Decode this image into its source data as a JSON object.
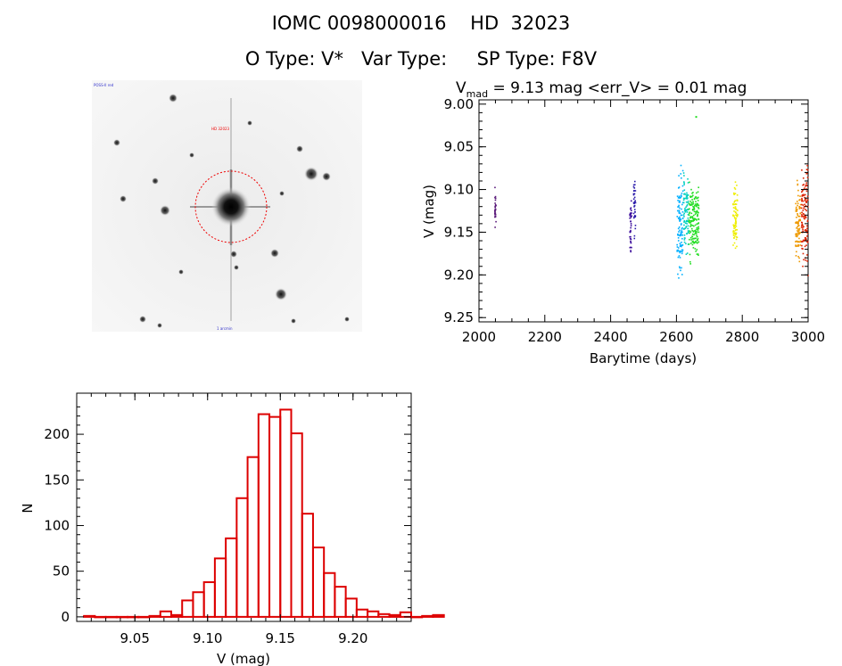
{
  "header": {
    "title": "IOMC 0098000016    HD  32023",
    "subtitle": "O Type: V*   Var Type:     SP Type: F8V"
  },
  "image_panel": {
    "labels": [
      "POSS-II red",
      "HD 32023",
      "1 arcmin"
    ]
  },
  "chart_data": [
    {
      "type": "scatter",
      "title": "V_mad = 9.13 mag <err_V> = 0.01 mag",
      "title_main": "V",
      "title_sub": "mad",
      "title_rest": " = 9.13 mag <err_V> = 0.01 mag",
      "xlabel": "Barytime (days)",
      "ylabel": "V (mag)",
      "xlim": [
        2000,
        3000
      ],
      "ylim": [
        9.255,
        8.995
      ],
      "y_inverted": true,
      "xticks": [
        "2000",
        "2200",
        "2400",
        "2600",
        "2800",
        "3000"
      ],
      "yticks": [
        "9.00",
        "9.05",
        "9.10",
        "9.15",
        "9.20",
        "9.25"
      ],
      "series": [
        {
          "color": "#5a1a7a",
          "x_range": [
            2048,
            2052
          ],
          "y_range": [
            9.095,
            9.152
          ]
        },
        {
          "color": "#3a0a9a",
          "x_range": [
            2458,
            2464
          ],
          "y_range": [
            9.105,
            9.188
          ]
        },
        {
          "color": "#2a1aaa",
          "x_range": [
            2470,
            2476
          ],
          "y_range": [
            9.075,
            9.17
          ]
        },
        {
          "color": "#00b0ff",
          "x_range": [
            2602,
            2620
          ],
          "y_range": [
            9.06,
            9.23
          ]
        },
        {
          "color": "#00d0c0",
          "x_range": [
            2622,
            2636
          ],
          "y_range": [
            9.07,
            9.19
          ]
        },
        {
          "color": "#22dd22",
          "x_range": [
            2638,
            2668
          ],
          "y_range": [
            9.08,
            9.2
          ]
        },
        {
          "color": "#eeee00",
          "x_range": [
            2772,
            2786
          ],
          "y_range": [
            9.075,
            9.19
          ]
        },
        {
          "color": "#ee9900",
          "x_range": [
            2962,
            2978
          ],
          "y_range": [
            9.08,
            9.2
          ]
        },
        {
          "color": "#dd2200",
          "x_range": [
            2980,
            3000
          ],
          "y_range": [
            9.05,
            9.21
          ]
        }
      ],
      "outliers": [
        {
          "x": 2660,
          "y": 9.015,
          "color": "#22dd22"
        }
      ]
    },
    {
      "type": "bar",
      "xlabel": "V (mag)",
      "ylabel": "N",
      "xlim": [
        9.01,
        9.24
      ],
      "ylim": [
        -5,
        245
      ],
      "xticks": [
        "9.05",
        "9.10",
        "9.15",
        "9.20"
      ],
      "yticks": [
        "0",
        "50",
        "100",
        "150",
        "200"
      ],
      "bin_width": 0.0075,
      "bin_start": 9.015,
      "values": [
        1,
        0,
        0,
        0,
        0,
        0,
        1,
        6,
        2,
        18,
        27,
        38,
        64,
        86,
        130,
        175,
        222,
        219,
        227,
        201,
        113,
        76,
        48,
        33,
        20,
        8,
        6,
        3,
        2,
        5,
        0,
        1,
        2
      ],
      "color": "#dd0000"
    }
  ]
}
